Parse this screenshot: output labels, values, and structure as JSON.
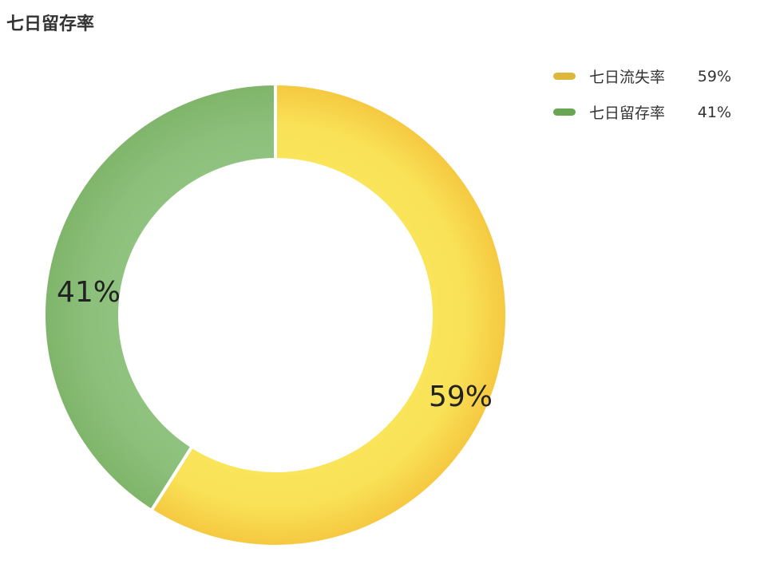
{
  "chart_data": {
    "type": "pie",
    "variant": "donut",
    "title": "七日留存率",
    "slices": [
      {
        "name": "七日流失率",
        "value": 59,
        "label": "59%",
        "color": "#f7d44a"
      },
      {
        "name": "七日留存率",
        "value": 41,
        "label": "41%",
        "color": "#85bb72"
      }
    ],
    "legend": {
      "placement": "top-right",
      "items": [
        {
          "name": "七日流失率",
          "percent": "59%",
          "color": "#dbb83a"
        },
        {
          "name": "七日留存率",
          "percent": "41%",
          "color": "#6aa552"
        }
      ]
    }
  }
}
